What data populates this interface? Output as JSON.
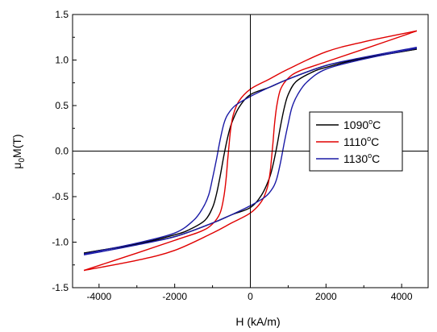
{
  "chart_data": {
    "type": "line",
    "xlabel": "H (kA/m)",
    "ylabel_main": "μ",
    "ylabel_sub": "0",
    "ylabel_rest": "M(T)",
    "xlim": [
      -4700,
      4700
    ],
    "ylim": [
      -1.5,
      1.5
    ],
    "xticks": [
      -4000,
      -2000,
      0,
      2000,
      4000
    ],
    "yticks": [
      -1.5,
      -1.0,
      -0.5,
      0.0,
      0.5,
      1.0,
      1.5
    ],
    "grid": false,
    "legend_position": "right-center",
    "series": [
      {
        "name_main": "1090",
        "name_sup": "o",
        "name_tail": "C",
        "color": "#000000",
        "descending": {
          "x": [
            4400,
            3000,
            2000,
            1000,
            500,
            0,
            -300,
            -500,
            -600,
            -700,
            -800,
            -900,
            -1000,
            -1200,
            -1600,
            -2000,
            -3000,
            -4400
          ],
          "y": [
            1.12,
            1.02,
            0.94,
            0.79,
            0.7,
            0.62,
            0.48,
            0.3,
            0.15,
            -0.05,
            -0.28,
            -0.48,
            -0.62,
            -0.76,
            -0.86,
            -0.92,
            -1.02,
            -1.12
          ]
        },
        "ascending": {
          "x": [
            -4400,
            -3000,
            -2000,
            -1000,
            -500,
            0,
            300,
            500,
            600,
            700,
            800,
            900,
            1000,
            1200,
            1600,
            2000,
            3000,
            4400
          ],
          "y": [
            -1.12,
            -1.02,
            -0.94,
            -0.79,
            -0.7,
            -0.62,
            -0.48,
            -0.3,
            -0.15,
            0.05,
            0.28,
            0.48,
            0.62,
            0.76,
            0.86,
            0.92,
            1.02,
            1.12
          ]
        }
      },
      {
        "name_main": "1110",
        "name_sup": "o",
        "name_tail": "C",
        "color": "#e00000",
        "descending": {
          "x": [
            4400,
            3000,
            2000,
            1000,
            500,
            0,
            -300,
            -450,
            -520,
            -560,
            -600,
            -640,
            -700,
            -800,
            -1000,
            -1300,
            -2000,
            -3000,
            -4400
          ],
          "y": [
            1.32,
            1.2,
            1.09,
            0.9,
            0.79,
            0.68,
            0.55,
            0.4,
            0.24,
            0.08,
            -0.1,
            -0.3,
            -0.5,
            -0.68,
            -0.8,
            -0.88,
            -0.98,
            -1.12,
            -1.31
          ]
        },
        "ascending": {
          "x": [
            -4400,
            -3000,
            -2000,
            -1000,
            -500,
            0,
            300,
            450,
            520,
            560,
            600,
            640,
            700,
            800,
            1000,
            1300,
            2000,
            3000,
            4400
          ],
          "y": [
            -1.31,
            -1.2,
            -1.09,
            -0.9,
            -0.79,
            -0.68,
            -0.55,
            -0.4,
            -0.24,
            -0.08,
            0.1,
            0.3,
            0.5,
            0.68,
            0.8,
            0.88,
            0.98,
            1.12,
            1.32
          ]
        }
      },
      {
        "name_main": "1130",
        "name_sup": "o",
        "name_tail": "C",
        "color": "#1a1aa6",
        "descending": {
          "x": [
            4400,
            3000,
            2000,
            1000,
            500,
            0,
            -400,
            -600,
            -700,
            -800,
            -900,
            -1000,
            -1100,
            -1250,
            -1500,
            -2000,
            -3000,
            -4400
          ],
          "y": [
            1.14,
            1.03,
            0.94,
            0.79,
            0.7,
            0.6,
            0.5,
            0.4,
            0.3,
            0.12,
            -0.1,
            -0.3,
            -0.48,
            -0.62,
            -0.76,
            -0.9,
            -1.01,
            -1.13
          ]
        },
        "ascending": {
          "x": [
            -4400,
            -3000,
            -2000,
            -1000,
            -500,
            0,
            400,
            600,
            700,
            800,
            900,
            1000,
            1100,
            1250,
            1500,
            2000,
            3000,
            4400
          ],
          "y": [
            -1.14,
            -1.03,
            -0.94,
            -0.79,
            -0.7,
            -0.6,
            -0.5,
            -0.4,
            -0.3,
            -0.12,
            0.1,
            0.3,
            0.48,
            0.62,
            0.76,
            0.9,
            1.01,
            1.13
          ]
        }
      }
    ]
  }
}
